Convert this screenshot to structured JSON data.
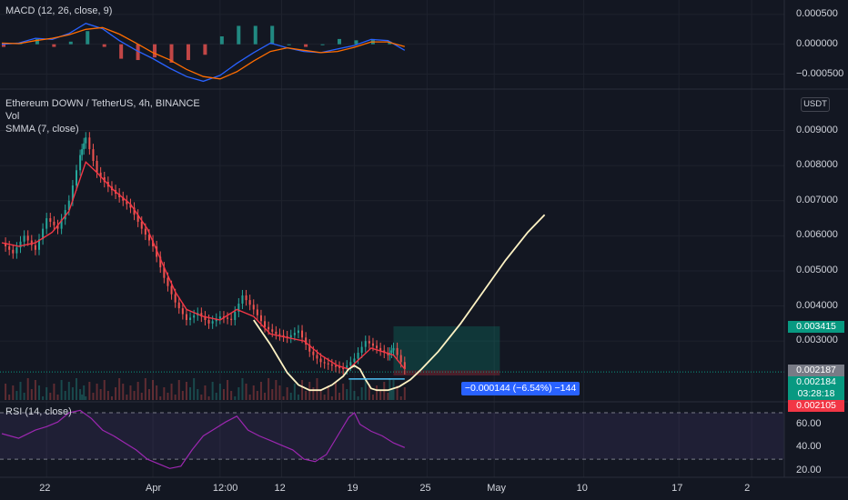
{
  "macd": {
    "title": "MACD (12, 26, close, 9)",
    "ticks": [
      {
        "v": 0.0005,
        "label": "0.000500"
      },
      {
        "v": 0,
        "label": "0.000000"
      },
      {
        "v": -0.0005,
        "label": "−0.000500"
      }
    ],
    "range": [
      -0.00072,
      0.00068
    ],
    "macd_line": [
      [
        0,
        0
      ],
      [
        3,
        2e-05
      ],
      [
        6,
        0.0001
      ],
      [
        9,
        8e-05
      ],
      [
        12,
        0.00018
      ],
      [
        15,
        0.00035
      ],
      [
        18,
        0.00026
      ],
      [
        21,
        6e-05
      ],
      [
        24,
        -0.0001
      ],
      [
        27,
        -0.00024
      ],
      [
        30,
        -0.0004
      ],
      [
        33,
        -0.00054
      ],
      [
        36,
        -0.00062
      ],
      [
        39,
        -0.00052
      ],
      [
        42,
        -0.00032
      ],
      [
        45,
        -0.00014
      ],
      [
        48,
        2e-05
      ],
      [
        51,
        -6e-05
      ],
      [
        54,
        -0.00012
      ],
      [
        57,
        -0.00014
      ],
      [
        60,
        -8e-05
      ],
      [
        63,
        -2e-05
      ],
      [
        66,
        8e-05
      ],
      [
        69,
        6e-05
      ],
      [
        72,
        -0.0001
      ]
    ],
    "signal_line": [
      [
        0,
        2e-05
      ],
      [
        3,
        1e-05
      ],
      [
        6,
        6e-05
      ],
      [
        9,
        0.0001
      ],
      [
        12,
        0.00016
      ],
      [
        15,
        0.00025
      ],
      [
        18,
        0.00028
      ],
      [
        21,
        0.00017
      ],
      [
        24,
        2e-05
      ],
      [
        27,
        -0.00014
      ],
      [
        30,
        -0.00026
      ],
      [
        33,
        -0.00042
      ],
      [
        36,
        -0.00054
      ],
      [
        39,
        -0.00058
      ],
      [
        42,
        -0.00046
      ],
      [
        45,
        -0.00028
      ],
      [
        48,
        -0.00012
      ],
      [
        51,
        -6e-05
      ],
      [
        54,
        -0.0001
      ],
      [
        57,
        -0.00014
      ],
      [
        60,
        -0.00012
      ],
      [
        63,
        -5e-05
      ],
      [
        66,
        4e-05
      ],
      [
        69,
        4e-05
      ],
      [
        72,
        -4e-05
      ]
    ]
  },
  "main": {
    "title": "Ethereum DOWN / TetherUS, 4h, BINANCE",
    "vol_label": "Vol",
    "smma_label": "SMMA (7, close)",
    "currency": "USDT",
    "ticks": [
      {
        "v": 0.009,
        "label": "0.009000"
      },
      {
        "v": 0.008,
        "label": "0.008000"
      },
      {
        "v": 0.007,
        "label": "0.007000"
      },
      {
        "v": 0.006,
        "label": "0.006000"
      },
      {
        "v": 0.005,
        "label": "0.005000"
      },
      {
        "v": 0.004,
        "label": "0.004000"
      },
      {
        "v": 0.003,
        "label": "0.003000"
      }
    ],
    "range": [
      0.00132,
      0.01005
    ],
    "close_series": [
      [
        0,
        0.0058
      ],
      [
        2,
        0.0055
      ],
      [
        4,
        0.006
      ],
      [
        6,
        0.0056
      ],
      [
        8,
        0.0065
      ],
      [
        10,
        0.0062
      ],
      [
        12,
        0.007
      ],
      [
        14,
        0.0083
      ],
      [
        15,
        0.0088
      ],
      [
        17,
        0.0078
      ],
      [
        19,
        0.0074
      ],
      [
        21,
        0.0071
      ],
      [
        23,
        0.0068
      ],
      [
        25,
        0.0062
      ],
      [
        27,
        0.0057
      ],
      [
        29,
        0.0048
      ],
      [
        31,
        0.0041
      ],
      [
        33,
        0.0036
      ],
      [
        35,
        0.0038
      ],
      [
        37,
        0.0035
      ],
      [
        39,
        0.0037
      ],
      [
        41,
        0.0036
      ],
      [
        43,
        0.0043
      ],
      [
        45,
        0.0039
      ],
      [
        47,
        0.0034
      ],
      [
        49,
        0.0032
      ],
      [
        51,
        0.0031
      ],
      [
        53,
        0.0033
      ],
      [
        55,
        0.0027
      ],
      [
        57,
        0.0024
      ],
      [
        59,
        0.0023
      ],
      [
        61,
        0.0022
      ],
      [
        63,
        0.0025
      ],
      [
        65,
        0.003
      ],
      [
        67,
        0.0028
      ],
      [
        69,
        0.0026
      ],
      [
        70,
        0.0028
      ],
      [
        72,
        0.0022
      ]
    ],
    "smma_series": [
      [
        0,
        0.0058
      ],
      [
        3,
        0.0057
      ],
      [
        6,
        0.0058
      ],
      [
        9,
        0.0061
      ],
      [
        12,
        0.0067
      ],
      [
        15,
        0.0081
      ],
      [
        17,
        0.0078
      ],
      [
        20,
        0.0073
      ],
      [
        23,
        0.0069
      ],
      [
        26,
        0.0062
      ],
      [
        29,
        0.0051
      ],
      [
        31,
        0.0044
      ],
      [
        33,
        0.0039
      ],
      [
        36,
        0.0037
      ],
      [
        39,
        0.0036
      ],
      [
        42,
        0.0039
      ],
      [
        45,
        0.0037
      ],
      [
        48,
        0.0032
      ],
      [
        51,
        0.0031
      ],
      [
        54,
        0.003
      ],
      [
        57,
        0.0026
      ],
      [
        60,
        0.0023
      ],
      [
        62,
        0.0022
      ],
      [
        64,
        0.0025
      ],
      [
        66,
        0.0028
      ],
      [
        68,
        0.0027
      ],
      [
        70,
        0.0026
      ],
      [
        72,
        0.0022
      ]
    ],
    "hline": 0.00212,
    "price_boxes": [
      {
        "label": "0.003415",
        "v": 0.003415,
        "color": "#089981"
      },
      {
        "label": "0.002187",
        "v": 0.002187,
        "color": "#787b86"
      },
      {
        "label": "0.002184",
        "v": 0.002184,
        "color": "#089981"
      },
      {
        "label": "03:28:18",
        "v": 0.002184,
        "color": "#089981"
      },
      {
        "label": "0.002105",
        "v": 0.002105,
        "color": "#f23645"
      }
    ],
    "measure_label": "−0.000144 (−6.54%) −144",
    "target_zone": [
      0.00216,
      0.00342
    ],
    "loss_zone": [
      0.00202,
      0.00216
    ],
    "drawn_path": [
      [
        45,
        0.0036
      ],
      [
        48,
        0.0029
      ],
      [
        51,
        0.0021
      ],
      [
        53,
        0.00175
      ],
      [
        55,
        0.0016
      ],
      [
        57,
        0.0016
      ],
      [
        59,
        0.00175
      ],
      [
        61,
        0.002
      ],
      [
        62,
        0.0022
      ],
      [
        63,
        0.0023
      ],
      [
        64,
        0.0022
      ],
      [
        65,
        0.0019
      ],
      [
        66,
        0.00165
      ],
      [
        67,
        0.0016
      ],
      [
        69,
        0.0016
      ],
      [
        71,
        0.0017
      ],
      [
        73,
        0.0019
      ],
      [
        75,
        0.0022
      ],
      [
        78,
        0.0027
      ],
      [
        82,
        0.0035
      ],
      [
        86,
        0.0044
      ],
      [
        90,
        0.0053
      ],
      [
        94,
        0.0061
      ],
      [
        97,
        0.0066
      ]
    ]
  },
  "rsi": {
    "title": "RSI (14, close)",
    "ticks": [
      {
        "v": 60,
        "label": "60.00"
      },
      {
        "v": 40,
        "label": "40.00"
      },
      {
        "v": 20,
        "label": "20.00"
      }
    ],
    "range": [
      16,
      77
    ],
    "upper": 70,
    "lower": 30,
    "series": [
      [
        0,
        52
      ],
      [
        3,
        48
      ],
      [
        6,
        55
      ],
      [
        8,
        58
      ],
      [
        10,
        62
      ],
      [
        12,
        70
      ],
      [
        14,
        72
      ],
      [
        16,
        65
      ],
      [
        18,
        55
      ],
      [
        20,
        50
      ],
      [
        22,
        44
      ],
      [
        24,
        38
      ],
      [
        26,
        30
      ],
      [
        28,
        26
      ],
      [
        30,
        22
      ],
      [
        32,
        24
      ],
      [
        34,
        38
      ],
      [
        36,
        50
      ],
      [
        38,
        56
      ],
      [
        40,
        62
      ],
      [
        42,
        67
      ],
      [
        44,
        55
      ],
      [
        46,
        50
      ],
      [
        48,
        46
      ],
      [
        50,
        42
      ],
      [
        52,
        38
      ],
      [
        54,
        30
      ],
      [
        56,
        28
      ],
      [
        58,
        34
      ],
      [
        60,
        50
      ],
      [
        62,
        66
      ],
      [
        63,
        70
      ],
      [
        64,
        60
      ],
      [
        66,
        54
      ],
      [
        68,
        50
      ],
      [
        70,
        44
      ],
      [
        72,
        40
      ]
    ]
  },
  "x_axis": {
    "ticks": [
      {
        "i": 8,
        "label": "22"
      },
      {
        "i": 27,
        "label": "Apr"
      },
      {
        "i": 39,
        "label": "12:00"
      },
      {
        "i": 50,
        "label": "12"
      },
      {
        "i": 63,
        "label": "19"
      },
      {
        "i": 76,
        "label": "25"
      },
      {
        "i": 88,
        "label": "May"
      },
      {
        "i": 104,
        "label": "10"
      },
      {
        "i": 121,
        "label": "17"
      },
      {
        "i": 134,
        "label": "2"
      }
    ]
  }
}
